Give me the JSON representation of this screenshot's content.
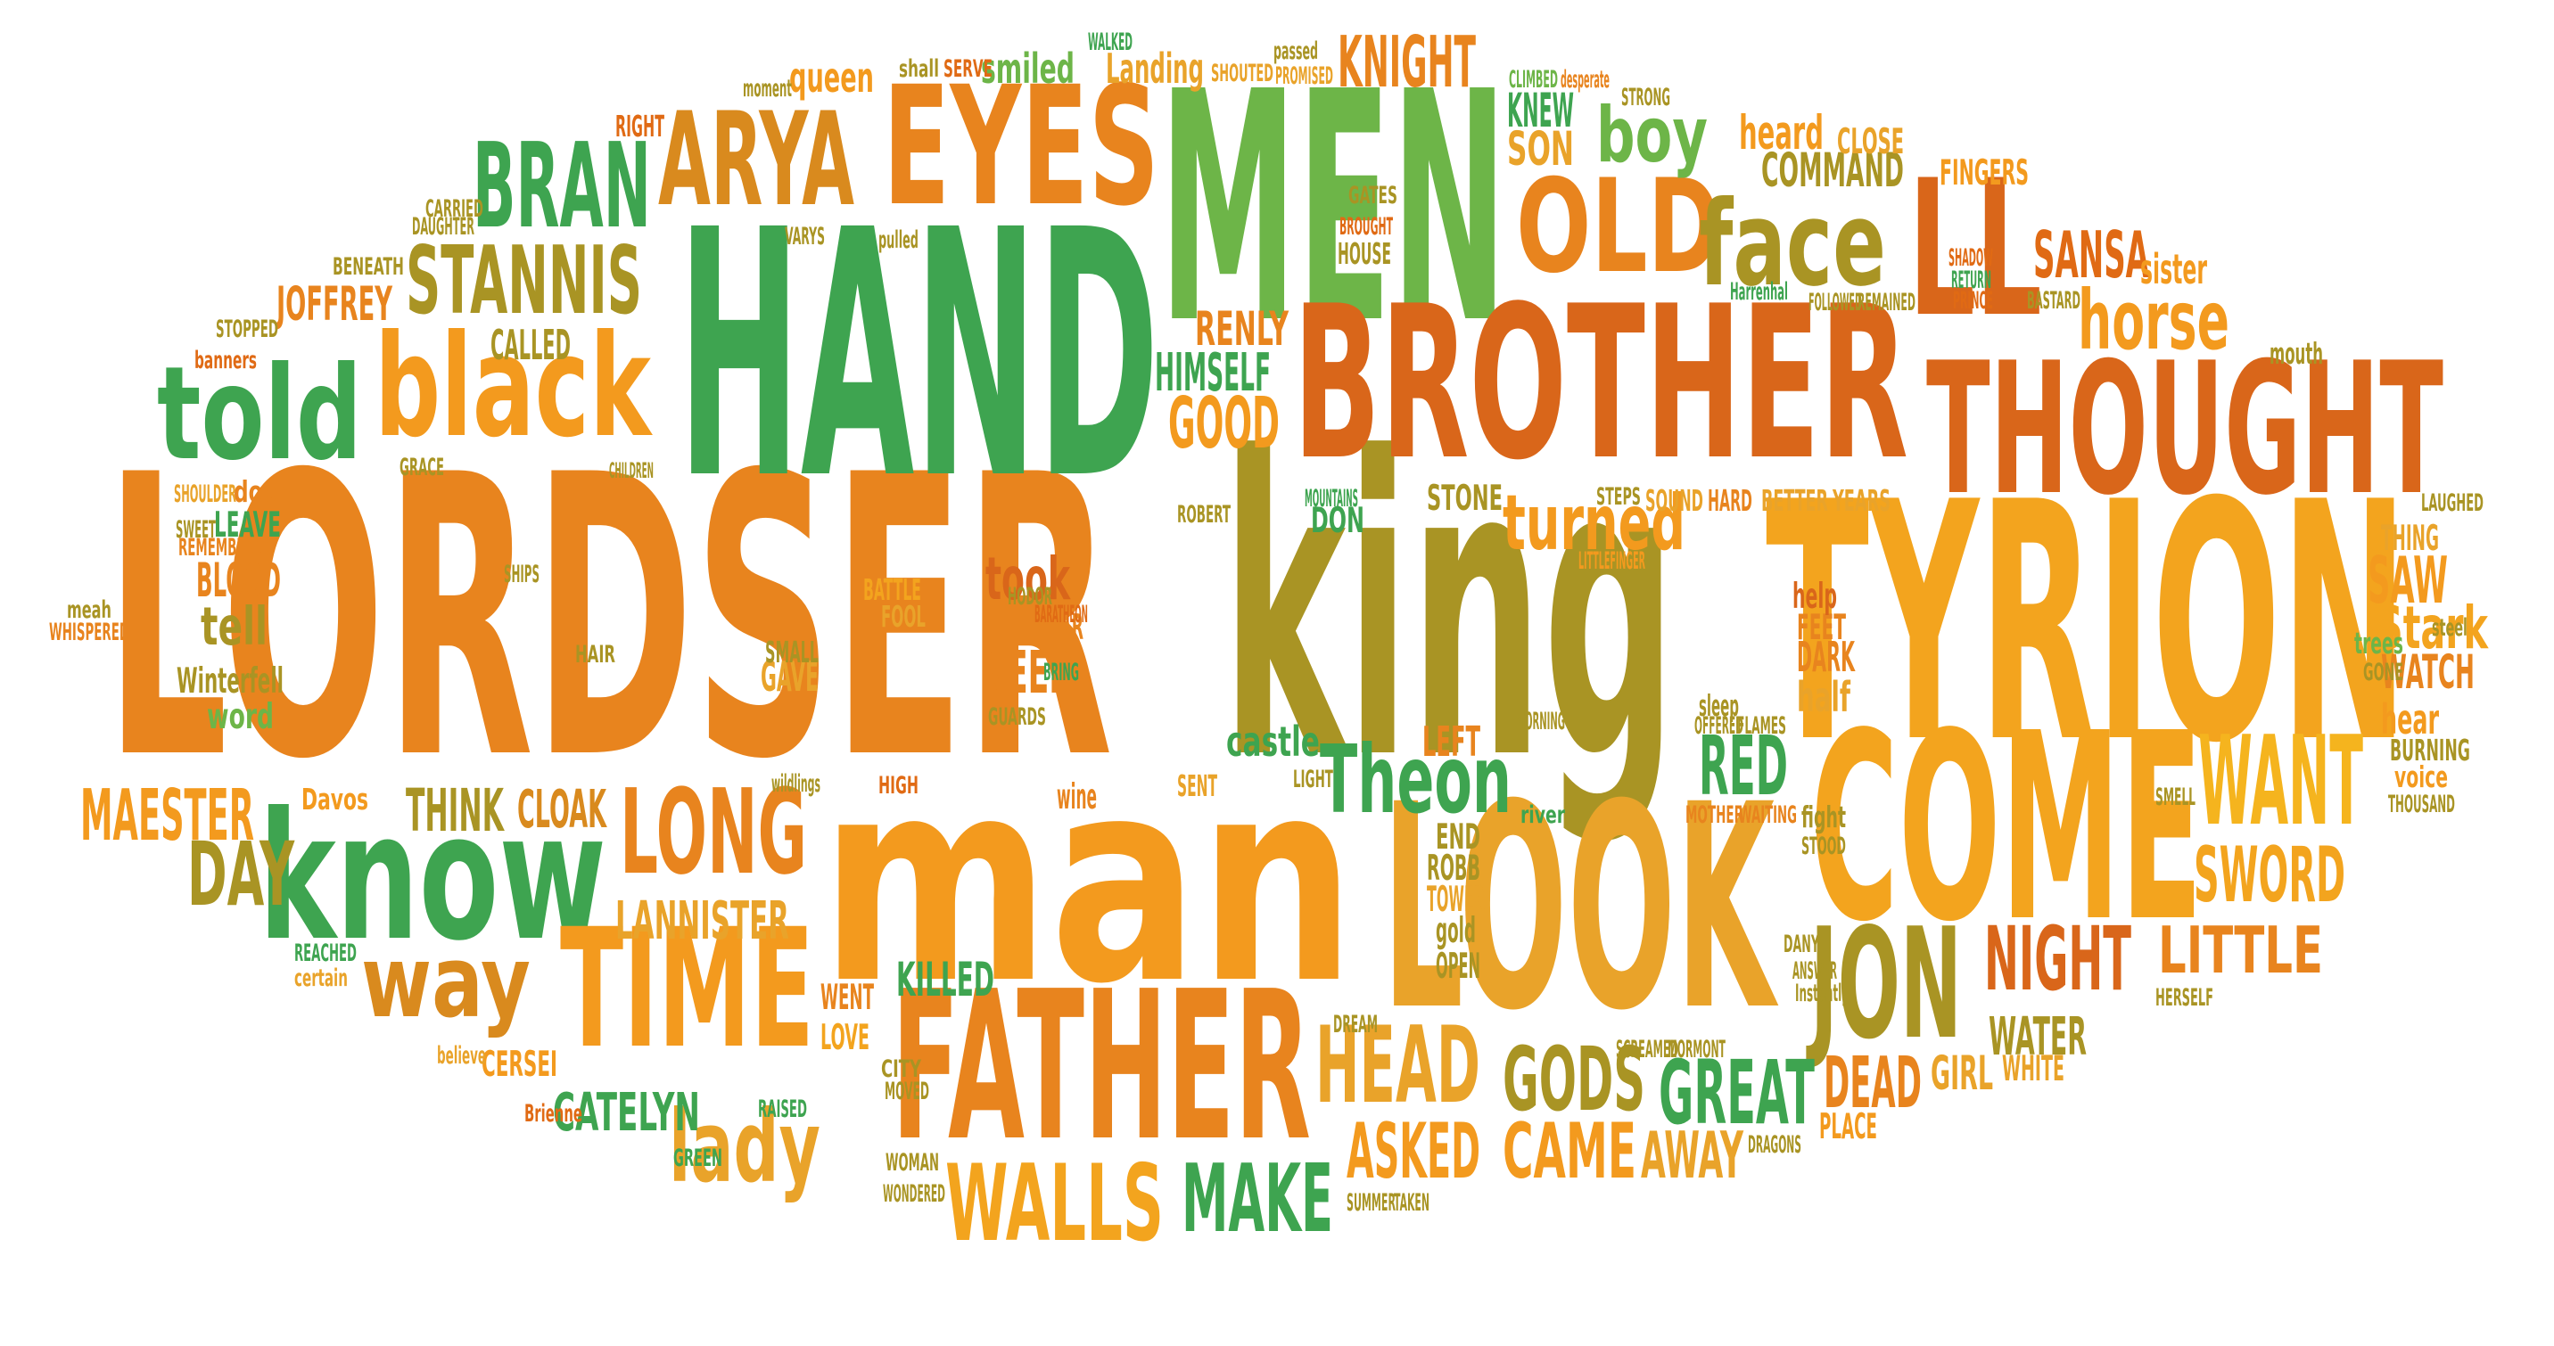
{
  "palette": {
    "dark_orange": "#E06A14",
    "orange": "#F39A1E",
    "amber": "#E9A32A",
    "olive": "#A99424",
    "light_green": "#6DB548",
    "green": "#3EA450",
    "yellow_orange": "#F5B41E"
  },
  "words": [
    {
      "text": "LORDSER",
      "color": "#E8841E"
    },
    {
      "text": "king",
      "color": "#A99424"
    },
    {
      "text": "TYRION",
      "color": "#F3A41E"
    },
    {
      "text": "HAND",
      "color": "#3EA450"
    },
    {
      "text": "MEN",
      "color": "#6DB548"
    },
    {
      "text": "man",
      "color": "#F39A1E"
    },
    {
      "text": "BROTHER",
      "color": "#D9661A"
    },
    {
      "text": "LOOK",
      "color": "#E9A32A"
    },
    {
      "text": "COME",
      "color": "#F3A41E"
    },
    {
      "text": "FATHER",
      "color": "#E8841E"
    },
    {
      "text": "THOUGHT",
      "color": "#D9661A"
    },
    {
      "text": "LL",
      "color": "#D9661A"
    },
    {
      "text": "EYES",
      "color": "#E8841E"
    },
    {
      "text": "black",
      "color": "#F39A1E"
    },
    {
      "text": "know",
      "color": "#3EA450"
    },
    {
      "text": "TIME",
      "color": "#F39A1E"
    },
    {
      "text": "told",
      "color": "#3EA450"
    },
    {
      "text": "ARYA",
      "color": "#D98A1E"
    },
    {
      "text": "BRAN",
      "color": "#3EA450"
    },
    {
      "text": "OLD",
      "color": "#E8841E"
    },
    {
      "text": "face",
      "color": "#A99424"
    },
    {
      "text": "STANNIS",
      "color": "#A99424"
    },
    {
      "text": "JON",
      "color": "#A99424"
    },
    {
      "text": "LONG",
      "color": "#E8841E"
    },
    {
      "text": "HEAD",
      "color": "#E9A32A"
    },
    {
      "text": "WANT",
      "color": "#F5B41E"
    },
    {
      "text": "NIGHT",
      "color": "#D9661A"
    },
    {
      "text": "GODS",
      "color": "#A99424"
    },
    {
      "text": "GREAT",
      "color": "#3EA450"
    },
    {
      "text": "WALLS",
      "color": "#F3A41E"
    },
    {
      "text": "MAKE",
      "color": "#3EA450"
    },
    {
      "text": "DEAD",
      "color": "#E8841E"
    },
    {
      "text": "CAME",
      "color": "#F39A1E"
    },
    {
      "text": "SWORD",
      "color": "#F3A41E"
    },
    {
      "text": "Theon",
      "color": "#3EA450"
    },
    {
      "text": "turned",
      "color": "#F39A1E"
    },
    {
      "text": "way",
      "color": "#D98A1E"
    },
    {
      "text": "lady",
      "color": "#E9A32A"
    },
    {
      "text": "KNIGHT",
      "color": "#E8841E"
    },
    {
      "text": "horse",
      "color": "#F39A1E"
    },
    {
      "text": "boy",
      "color": "#6DB548"
    },
    {
      "text": "SANSA",
      "color": "#E06A14"
    },
    {
      "text": "DAY",
      "color": "#A99424"
    },
    {
      "text": "MAESTER",
      "color": "#F39A1E"
    },
    {
      "text": "LITTLE",
      "color": "#E8841E"
    },
    {
      "text": "ASKED",
      "color": "#F39A1E"
    },
    {
      "text": "AWAY",
      "color": "#E9A32A"
    },
    {
      "text": "RED",
      "color": "#3EA450"
    },
    {
      "text": "SAW",
      "color": "#F39A1E"
    },
    {
      "text": "Stark",
      "color": "#F3A41E"
    },
    {
      "text": "GOOD",
      "color": "#F39A1E"
    },
    {
      "text": "CATELYN",
      "color": "#3EA450"
    },
    {
      "text": "LANNISTER",
      "color": "#E9A32A"
    },
    {
      "text": "THINK",
      "color": "#A99424"
    },
    {
      "text": "CLOAK",
      "color": "#D98A1E"
    },
    {
      "text": "NEED",
      "color": "#E8841E"
    },
    {
      "text": "tell",
      "color": "#A99424"
    },
    {
      "text": "BLOOD",
      "color": "#E8841E"
    },
    {
      "text": "took",
      "color": "#D9661A"
    },
    {
      "text": "JOFFREY",
      "color": "#E8841E"
    },
    {
      "text": "HIMSELF",
      "color": "#3EA450"
    },
    {
      "text": "RENLY",
      "color": "#E8841E"
    },
    {
      "text": "COMMAND",
      "color": "#A99424"
    },
    {
      "text": "heard",
      "color": "#F39A1E"
    },
    {
      "text": "KNEW",
      "color": "#3EA450"
    },
    {
      "text": "SON",
      "color": "#E9A32A"
    },
    {
      "text": "sister",
      "color": "#F39A1E"
    },
    {
      "text": "KILLED",
      "color": "#3EA450"
    },
    {
      "text": "WATER",
      "color": "#A99424"
    },
    {
      "text": "GIRL",
      "color": "#E9A32A"
    },
    {
      "text": "WATCH",
      "color": "#E8841E"
    },
    {
      "text": "hear",
      "color": "#F39A1E"
    },
    {
      "text": "half",
      "color": "#E9A32A"
    },
    {
      "text": "DARK",
      "color": "#E8841E"
    },
    {
      "text": "queen",
      "color": "#F39A1E"
    },
    {
      "text": "smiled",
      "color": "#6DB548"
    },
    {
      "text": "Landing",
      "color": "#E9A32A"
    },
    {
      "text": "CALLED",
      "color": "#A99424"
    },
    {
      "text": "STONE",
      "color": "#A99424"
    },
    {
      "text": "DON",
      "color": "#3EA450"
    },
    {
      "text": "LEAVE",
      "color": "#3EA450"
    },
    {
      "text": "word",
      "color": "#6DB548"
    },
    {
      "text": "Winterfell",
      "color": "#A99424"
    },
    {
      "text": "GAVE",
      "color": "#E9A32A"
    },
    {
      "text": "castle",
      "color": "#3EA450"
    },
    {
      "text": "END",
      "color": "#A99424"
    },
    {
      "text": "ROBB",
      "color": "#A99424"
    },
    {
      "text": "TOWER",
      "color": "#E9A32A"
    },
    {
      "text": "gold",
      "color": "#A99424"
    },
    {
      "text": "OPEN",
      "color": "#A99424"
    },
    {
      "text": "WENT",
      "color": "#E8841E"
    },
    {
      "text": "LOVE",
      "color": "#F3A41E"
    },
    {
      "text": "CERSEI",
      "color": "#F39A1E"
    },
    {
      "text": "PLACE",
      "color": "#F39A1E"
    },
    {
      "text": "WHITE",
      "color": "#E9A32A"
    },
    {
      "text": "LEFT",
      "color": "#E8841E"
    },
    {
      "text": "FEET",
      "color": "#E8841E"
    },
    {
      "text": "help",
      "color": "#D9661A"
    },
    {
      "text": "RIGHT",
      "color": "#E06A14"
    },
    {
      "text": "CLOSE",
      "color": "#E9A32A"
    },
    {
      "text": "FINGERS",
      "color": "#F39A1E"
    },
    {
      "text": "SOUND",
      "color": "#E9A32A"
    },
    {
      "text": "HARD",
      "color": "#E8841E"
    },
    {
      "text": "BETTER",
      "color": "#E9A32A"
    },
    {
      "text": "YEARS",
      "color": "#E9A32A"
    },
    {
      "text": "THING",
      "color": "#E9A32A"
    },
    {
      "text": "LAUGHED",
      "color": "#A99424"
    },
    {
      "text": "BURNING",
      "color": "#A99424"
    },
    {
      "text": "voice",
      "color": "#F39A1E"
    },
    {
      "text": "FEAR",
      "color": "#E8841E"
    },
    {
      "text": "Davos",
      "color": "#F39A1E"
    },
    {
      "text": "wine",
      "color": "#E8841E"
    },
    {
      "text": "BATTLE",
      "color": "#F3A41E"
    },
    {
      "text": "FOOL",
      "color": "#E9A32A"
    },
    {
      "text": "SMALL",
      "color": "#A99424"
    },
    {
      "text": "HAIR",
      "color": "#A99424"
    },
    {
      "text": "SHIPS",
      "color": "#A99424"
    },
    {
      "text": "door",
      "color": "#E8841E"
    },
    {
      "text": "REMEMBERED",
      "color": "#E8841E"
    },
    {
      "text": "SWEET",
      "color": "#A99424"
    },
    {
      "text": "SHOULDER",
      "color": "#E9A32A"
    },
    {
      "text": "meah",
      "color": "#A99424"
    },
    {
      "text": "WHISPERED",
      "color": "#E8841E"
    },
    {
      "text": "GRACE",
      "color": "#A99424"
    },
    {
      "text": "banners",
      "color": "#E06A14"
    },
    {
      "text": "STOPPED",
      "color": "#A99424"
    },
    {
      "text": "BENEATH",
      "color": "#A99424"
    },
    {
      "text": "DAUGHTER",
      "color": "#A99424"
    },
    {
      "text": "CARRIED",
      "color": "#A99424"
    },
    {
      "text": "VARYS",
      "color": "#A99424"
    },
    {
      "text": "pulled",
      "color": "#A99424"
    },
    {
      "text": "GATES",
      "color": "#A99424"
    },
    {
      "text": "BROUGHT",
      "color": "#E06A14"
    },
    {
      "text": "HOUSE",
      "color": "#A99424"
    },
    {
      "text": "SERVE",
      "color": "#E06A14"
    },
    {
      "text": "shall",
      "color": "#A99424"
    },
    {
      "text": "moment",
      "color": "#A99424"
    },
    {
      "text": "WALKED",
      "color": "#3EA450"
    },
    {
      "text": "SHOUTED",
      "color": "#E9A32A"
    },
    {
      "text": "PROMISED",
      "color": "#E9A32A"
    },
    {
      "text": "passed",
      "color": "#A99424"
    },
    {
      "text": "CLIMBED",
      "color": "#6DB548"
    },
    {
      "text": "desperate",
      "color": "#E8841E"
    },
    {
      "text": "STRONG",
      "color": "#A99424"
    },
    {
      "text": "SHADOW",
      "color": "#E06A14"
    },
    {
      "text": "RETURN",
      "color": "#3EA450"
    },
    {
      "text": "PRINCE",
      "color": "#E06A14"
    },
    {
      "text": "BASTARD",
      "color": "#A99424"
    },
    {
      "text": "Harrenhal",
      "color": "#3EA450"
    },
    {
      "text": "FOLLOWED",
      "color": "#A99424"
    },
    {
      "text": "REMAINED",
      "color": "#A99424"
    },
    {
      "text": "mouth",
      "color": "#A99424"
    },
    {
      "text": "ROBERT",
      "color": "#A99424"
    },
    {
      "text": "MOUNTAINS",
      "color": "#3EA450"
    },
    {
      "text": "STEPS",
      "color": "#A99424"
    },
    {
      "text": "LITTLEFINGER",
      "color": "#F39A1E"
    },
    {
      "text": "HODOR",
      "color": "#A99424"
    },
    {
      "text": "BARATHEON",
      "color": "#E06A14"
    },
    {
      "text": "BRING",
      "color": "#3EA450"
    },
    {
      "text": "GUARDS",
      "color": "#A99424"
    },
    {
      "text": "trees",
      "color": "#6DB548"
    },
    {
      "text": "steel",
      "color": "#A99424"
    },
    {
      "text": "GONE",
      "color": "#A99424"
    },
    {
      "text": "sleep",
      "color": "#A99424"
    },
    {
      "text": "OFFERED",
      "color": "#A99424"
    },
    {
      "text": "FLAMES",
      "color": "#A99424"
    },
    {
      "text": "MORNING",
      "color": "#A99424"
    },
    {
      "text": "river",
      "color": "#3EA450"
    },
    {
      "text": "MOTHER",
      "color": "#E8841E"
    },
    {
      "text": "WAITING",
      "color": "#E8841E"
    },
    {
      "text": "fight",
      "color": "#A99424"
    },
    {
      "text": "STOOD",
      "color": "#A99424"
    },
    {
      "text": "SMELL",
      "color": "#A99424"
    },
    {
      "text": "THOUSAND",
      "color": "#A99424"
    },
    {
      "text": "HIGH",
      "color": "#E06A14"
    },
    {
      "text": "SENT",
      "color": "#E9A32A"
    },
    {
      "text": "LIGHT",
      "color": "#A99424"
    },
    {
      "text": "wildlings",
      "color": "#A99424"
    },
    {
      "text": "REACHED",
      "color": "#3EA450"
    },
    {
      "text": "certain",
      "color": "#E9A32A"
    },
    {
      "text": "believe",
      "color": "#E9A32A"
    },
    {
      "text": "Brienne",
      "color": "#E06A14"
    },
    {
      "text": "GREEN",
      "color": "#3EA450"
    },
    {
      "text": "RAISED",
      "color": "#3EA450"
    },
    {
      "text": "MOVED",
      "color": "#A99424"
    },
    {
      "text": "CITY",
      "color": "#A99424"
    },
    {
      "text": "WOMAN",
      "color": "#A99424"
    },
    {
      "text": "WONDERED",
      "color": "#A99424"
    },
    {
      "text": "DREAM",
      "color": "#A99424"
    },
    {
      "text": "SUMMER",
      "color": "#A99424"
    },
    {
      "text": "TAKEN",
      "color": "#A99424"
    },
    {
      "text": "SCREAMED",
      "color": "#A99424"
    },
    {
      "text": "MORMONT",
      "color": "#A99424"
    },
    {
      "text": "DRAGONS",
      "color": "#A99424"
    },
    {
      "text": "DANY",
      "color": "#A99424"
    },
    {
      "text": "ANSWER",
      "color": "#A99424"
    },
    {
      "text": "HERSELF",
      "color": "#A99424"
    },
    {
      "text": "Instantly",
      "color": "#A99424"
    },
    {
      "text": "CHILDREN",
      "color": "#A99424"
    }
  ]
}
